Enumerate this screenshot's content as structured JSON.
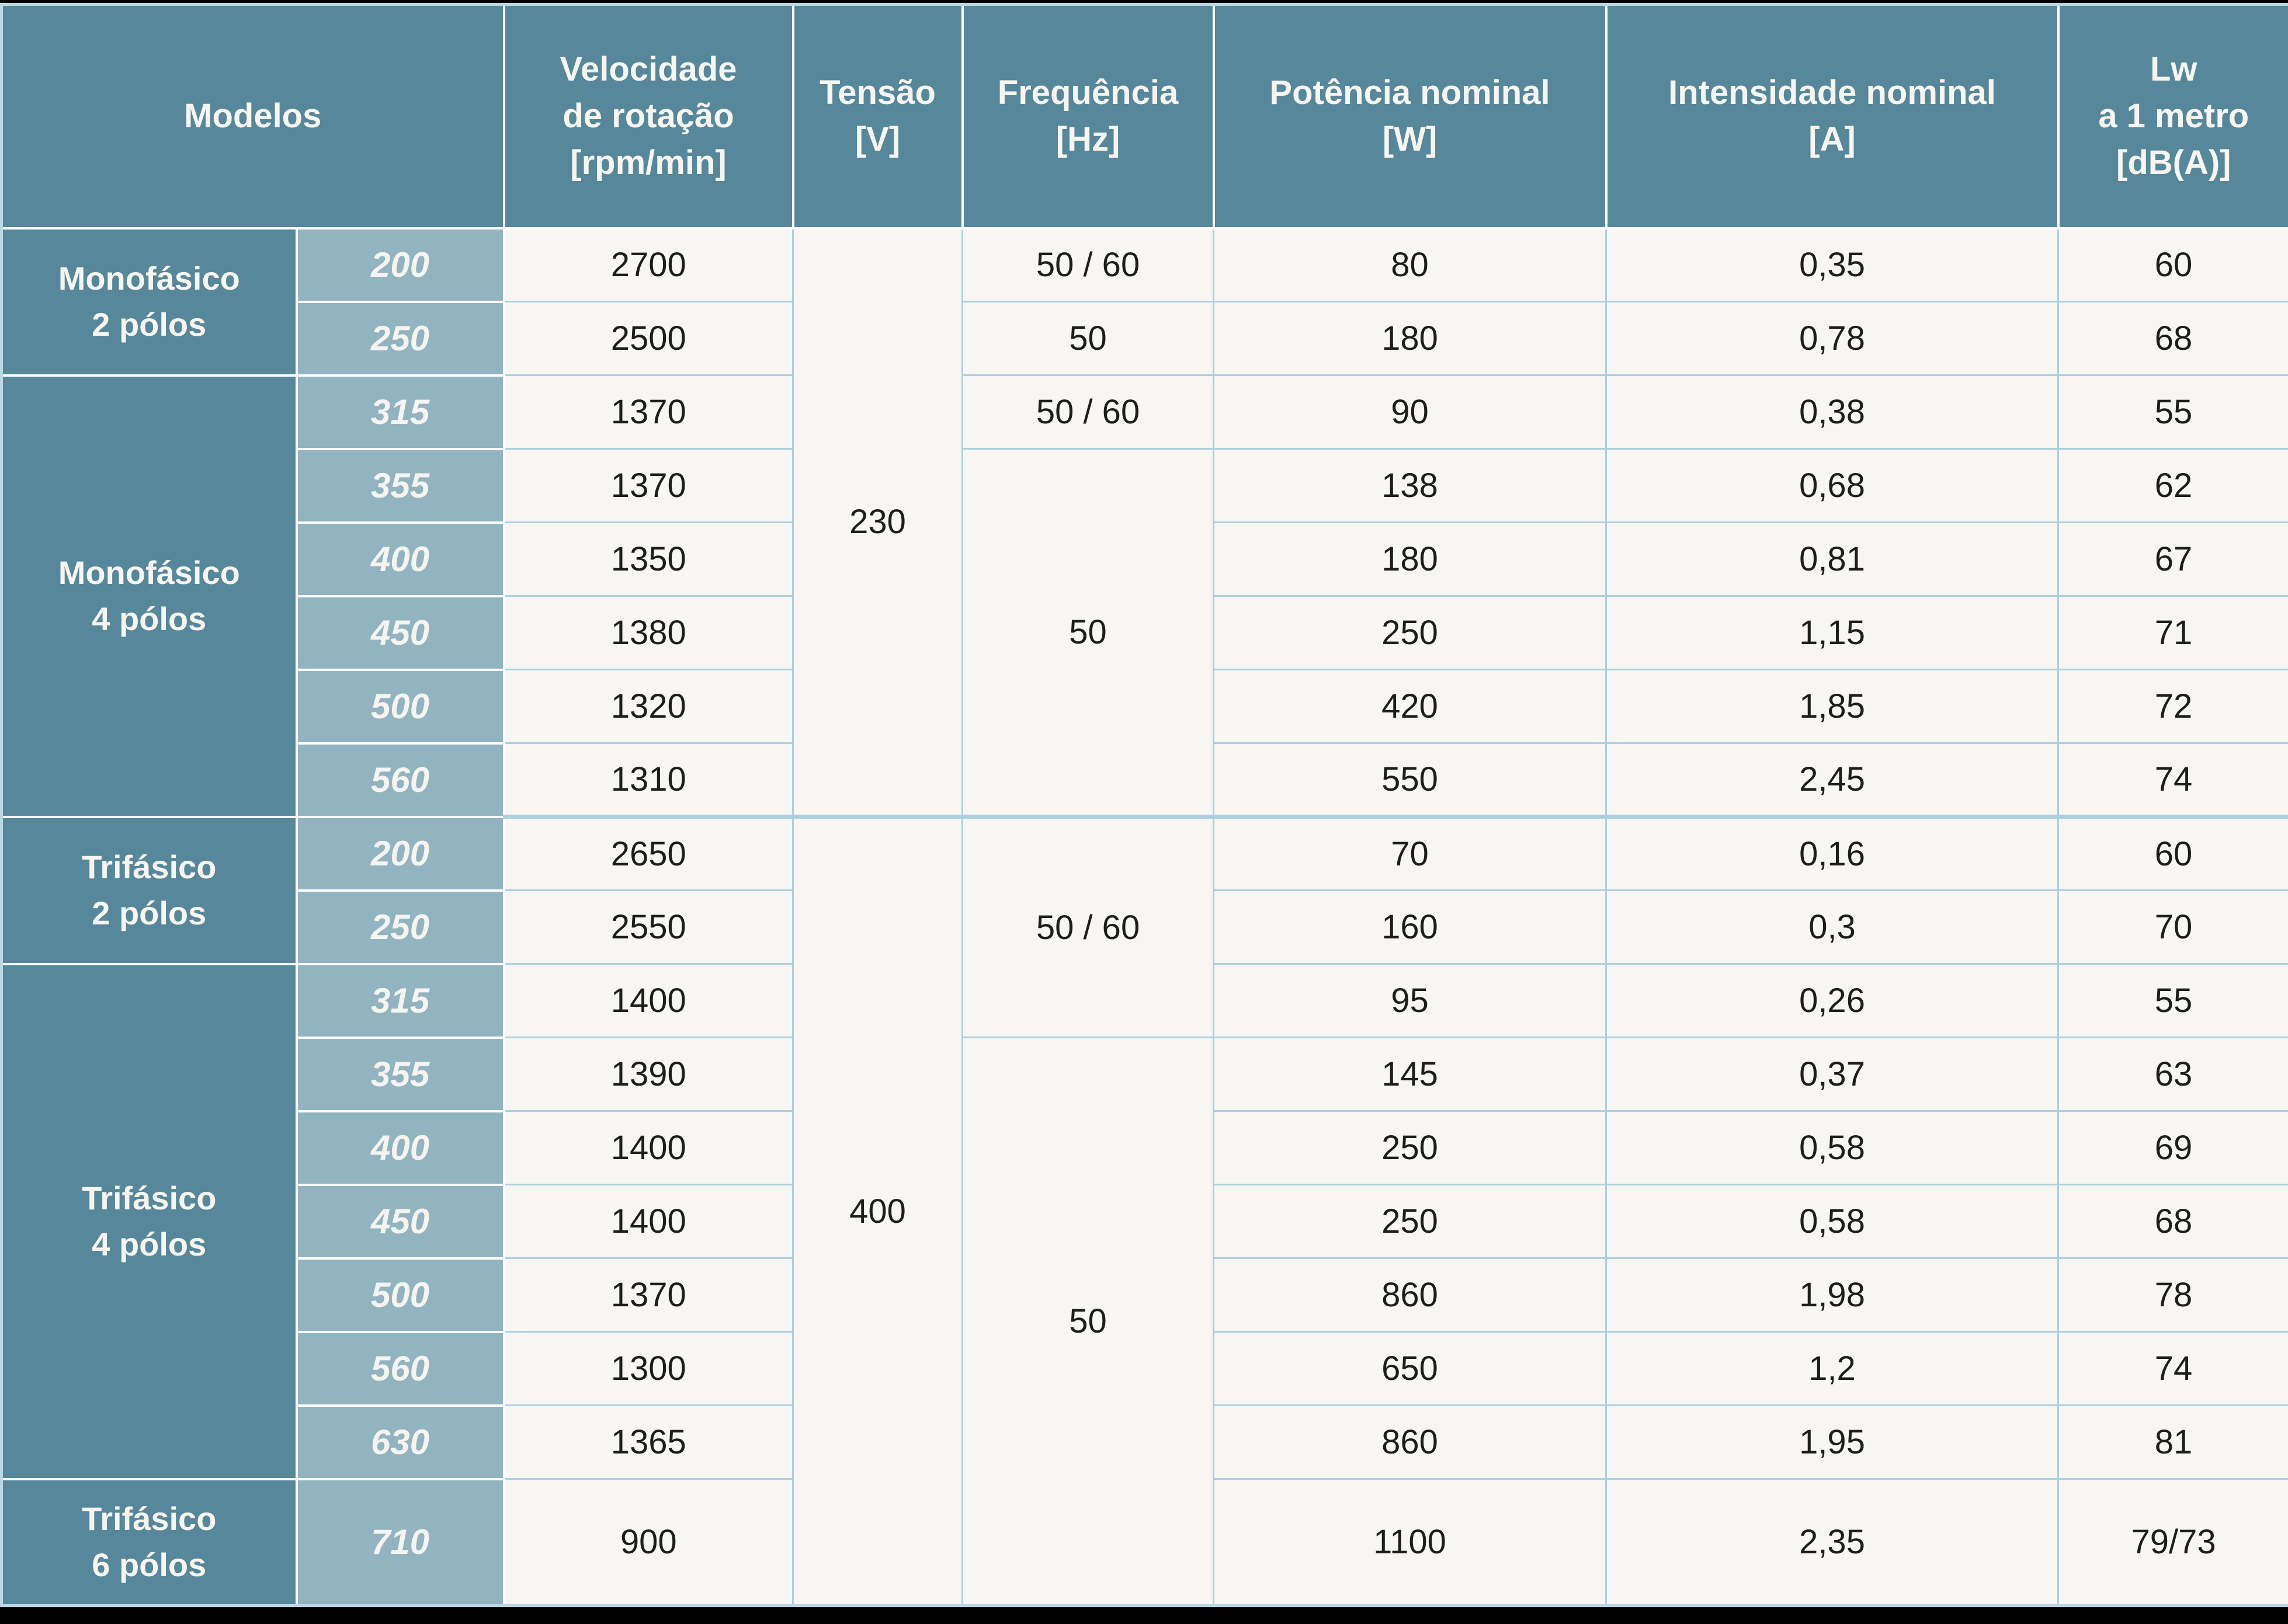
{
  "colors": {
    "teal_header": "#56879A",
    "light_teal_model": "#92B4C1",
    "paper_background": "#F7F6F2",
    "grid_line_blue": "#ACD0DE",
    "outer_frame_blue": "#B9D8E3",
    "separator_white": "#FFFFFF",
    "ink_text": "#1D1D1B",
    "light_text": "#F7F5F0",
    "edge_bar_black": "#000000"
  },
  "header": {
    "modelos": "Modelos",
    "velocidade": "Velocidade\nde rotação\n[rpm/min]",
    "tensao": "Tensão\n[V]",
    "frequencia": "Frequência\n[Hz]",
    "potencia": "Potência nominal\n[W]",
    "intensidade": "Intensidade nominal\n[A]",
    "lw": "Lw\na 1 metro\n[dB(A)]"
  },
  "groups": [
    {
      "label": "Monofásico\n2 pólos"
    },
    {
      "label": "Monofásico\n4 pólos"
    },
    {
      "label": "Trifásico\n2 pólos"
    },
    {
      "label": "Trifásico\n4 pólos"
    },
    {
      "label": "Trifásico\n6 pólos"
    }
  ],
  "tensions": [
    "230",
    "400"
  ],
  "frequencies": [
    "50 / 60",
    "50",
    "50 / 60",
    "50",
    "50 / 60",
    "50"
  ],
  "rows": [
    {
      "model": "200",
      "rpm": "2700",
      "w": "80",
      "a": "0,35",
      "db": "60"
    },
    {
      "model": "250",
      "rpm": "2500",
      "w": "180",
      "a": "0,78",
      "db": "68"
    },
    {
      "model": "315",
      "rpm": "1370",
      "w": "90",
      "a": "0,38",
      "db": "55"
    },
    {
      "model": "355",
      "rpm": "1370",
      "w": "138",
      "a": "0,68",
      "db": "62"
    },
    {
      "model": "400",
      "rpm": "1350",
      "w": "180",
      "a": "0,81",
      "db": "67"
    },
    {
      "model": "450",
      "rpm": "1380",
      "w": "250",
      "a": "1,15",
      "db": "71"
    },
    {
      "model": "500",
      "rpm": "1320",
      "w": "420",
      "a": "1,85",
      "db": "72"
    },
    {
      "model": "560",
      "rpm": "1310",
      "w": "550",
      "a": "2,45",
      "db": "74"
    },
    {
      "model": "200",
      "rpm": "2650",
      "w": "70",
      "a": "0,16",
      "db": "60"
    },
    {
      "model": "250",
      "rpm": "2550",
      "w": "160",
      "a": "0,3",
      "db": "70"
    },
    {
      "model": "315",
      "rpm": "1400",
      "w": "95",
      "a": "0,26",
      "db": "55"
    },
    {
      "model": "355",
      "rpm": "1390",
      "w": "145",
      "a": "0,37",
      "db": "63"
    },
    {
      "model": "400",
      "rpm": "1400",
      "w": "250",
      "a": "0,58",
      "db": "69"
    },
    {
      "model": "450",
      "rpm": "1400",
      "w": "250",
      "a": "0,58",
      "db": "68"
    },
    {
      "model": "500",
      "rpm": "1370",
      "w": "860",
      "a": "1,98",
      "db": "78"
    },
    {
      "model": "560",
      "rpm": "1300",
      "w": "650",
      "a": "1,2",
      "db": "74"
    },
    {
      "model": "630",
      "rpm": "1365",
      "w": "860",
      "a": "1,95",
      "db": "81"
    },
    {
      "model": "710",
      "rpm": "900",
      "w": "1100",
      "a": "2,35",
      "db": "79/73"
    }
  ]
}
